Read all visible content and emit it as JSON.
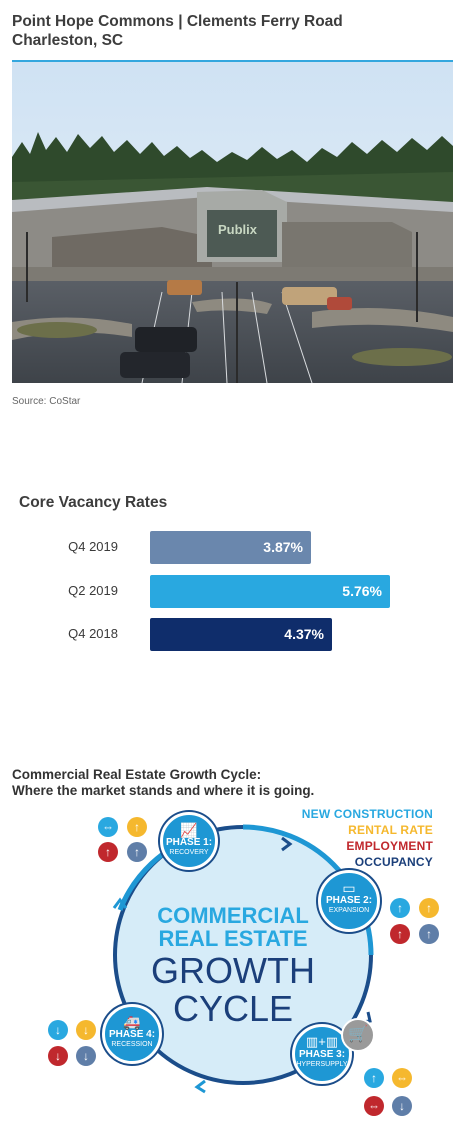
{
  "header": {
    "title_line1": "Point Hope Commons | Clements Ferry Road",
    "title_line2": "Charleston, SC"
  },
  "photo": {
    "sign_text": "Publix",
    "source": "Source: CoStar"
  },
  "vacancy": {
    "title": "Core Vacancy Rates",
    "bars": [
      {
        "label": "Q4 2019",
        "value": 3.87,
        "text": "3.87%",
        "color": "#6a87ad"
      },
      {
        "label": "Q2 2019",
        "value": 5.76,
        "text": "5.76%",
        "color": "#29a8e0"
      },
      {
        "label": "Q4 2018",
        "value": 4.37,
        "text": "4.37%",
        "color": "#0f2d6b"
      }
    ]
  },
  "cycle": {
    "title_line1": "Commercial Real Estate Growth Cycle:",
    "title_line2": "Where the market stands and where it is going.",
    "legend": [
      {
        "text": "NEW CONSTRUCTION",
        "color": "#29a8e0"
      },
      {
        "text": "RENTAL RATE",
        "color": "#f5b82e"
      },
      {
        "text": "EMPLOYMENT",
        "color": "#c0282d"
      },
      {
        "text": "OCCUPANCY",
        "color": "#1b3f7a"
      }
    ],
    "center": {
      "line1": "COMMERCIAL",
      "line2": "REAL ESTATE",
      "line3": "GROWTH",
      "line4": "CYCLE"
    },
    "phases": [
      {
        "number": "PHASE 1:",
        "name": "RECOVERY",
        "icon": "chart-icon"
      },
      {
        "number": "PHASE 2:",
        "name": "EXPANSION",
        "icon": "floorplan-icon"
      },
      {
        "number": "PHASE 3:",
        "name": "HYPERSUPPLY",
        "icon": "buildings-icon"
      },
      {
        "number": "PHASE 4:",
        "name": "RECESSION",
        "icon": "ambulance-icon"
      }
    ],
    "colors": {
      "accent": "#1e97d4",
      "dark": "#1b4d8a",
      "circle_fill": "#d6ecf8"
    }
  }
}
